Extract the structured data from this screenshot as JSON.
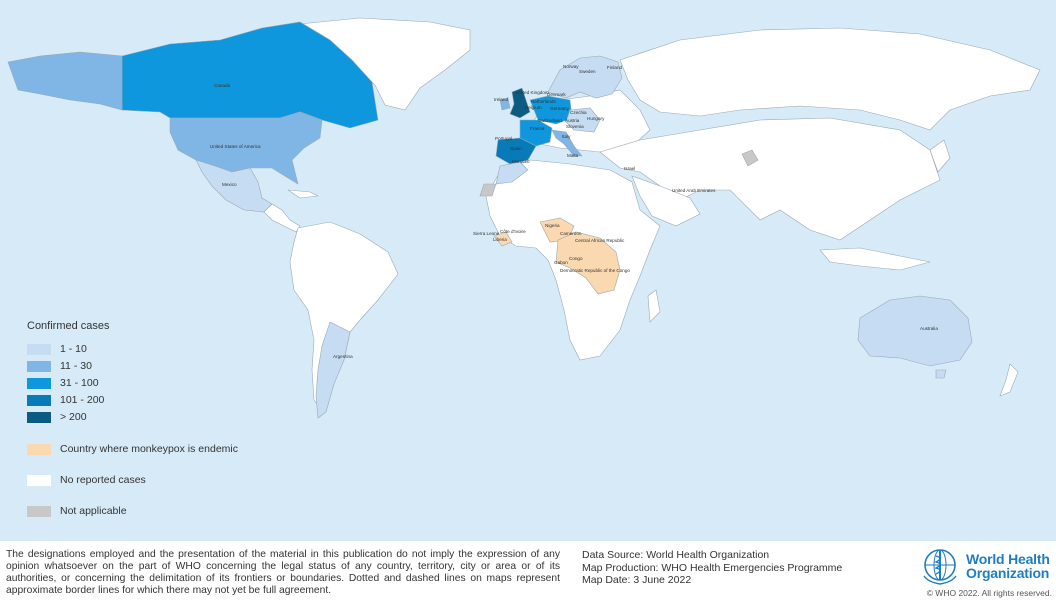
{
  "legend": {
    "title": "Confirmed cases",
    "items": [
      {
        "label": "1 - 10",
        "color": "#c6dcf2"
      },
      {
        "label": "11 - 30",
        "color": "#7fb6e5"
      },
      {
        "label": "31 - 100",
        "color": "#0e97dc"
      },
      {
        "label": "101 - 200",
        "color": "#087ab8"
      },
      {
        "label": "> 200",
        "color": "#0b5b83"
      }
    ],
    "endemic": {
      "label": "Country where monkeypox is endemic",
      "color": "#fad8b0"
    },
    "no_cases": {
      "label": "No reported cases",
      "color": "#ffffff"
    },
    "not_applicable": {
      "label": "Not applicable",
      "color": "#c8c8c8"
    }
  },
  "countries": {
    "canada": "Canada",
    "usa": "United States of America",
    "mexico": "Mexico",
    "argentina": "Argentina",
    "australia": "Australia",
    "uk": "United Kingdom",
    "ireland": "Ireland",
    "netherlands": "Netherlands",
    "belgium": "Belgium",
    "france": "France",
    "portugal": "Portugal",
    "spain": "Spain",
    "germany": "Germany",
    "switzerland": "Switzerland",
    "denmark": "Denmark",
    "norway": "Norway",
    "sweden": "Sweden",
    "finland": "Finland",
    "czechia": "Czechia",
    "austria": "Austria",
    "slovenia": "Slovenia",
    "hungary": "Hungary",
    "italy": "Italy",
    "malta": "Malta",
    "morocco": "Morocco",
    "israel": "Israel",
    "uae": "United Arab Emirates",
    "nigeria": "Nigeria",
    "cameroon": "Cameroon",
    "car": "Central African Republic",
    "sierra_leone": "Sierra Leone",
    "cote_divoire": "Côte d'Ivoire",
    "liberia": "Liberia",
    "congo": "Congo",
    "gabon": "Gabon",
    "drc": "Democratic Republic of the Congo"
  },
  "footer": {
    "disclaimer": "The designations employed and the presentation of the material in this publication do not imply the expression of any opinion whatsoever on the part of WHO concerning the legal status of any country, territory, city or area or of its authorities, or concerning the delimitation of its frontiers or boundaries. Dotted and dashed lines on maps represent approximate border lines for which there may not yet be full agreement.",
    "data_source": "Data Source: World Health Organization",
    "map_production": "Map Production: WHO Health Emergencies Programme",
    "map_date": "Map Date: 3 June 2022",
    "who_name_line1": "World Health",
    "who_name_line2": "Organization",
    "copyright": "© WHO 2022. All rights reserved."
  },
  "colors": {
    "ocean": "#d6ebf7",
    "land": "#ffffff",
    "border": "#9aa9b5",
    "who_blue": "#1f7ec2"
  }
}
